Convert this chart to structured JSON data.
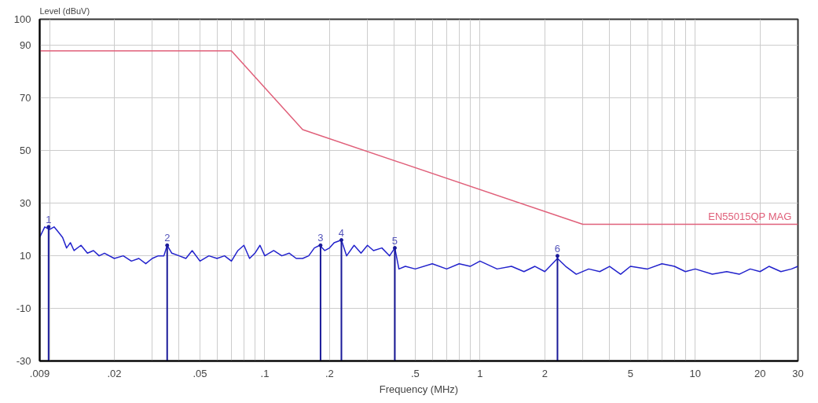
{
  "chart_data": {
    "type": "line",
    "xlabel": "Frequency (MHz)",
    "ylabel": "Level (dBuV)",
    "log": "x",
    "grid": true,
    "marker": "none",
    "line_style": "solid",
    "xlim": [
      0.009,
      30
    ],
    "ylim": [
      -30,
      100
    ],
    "xticks": [
      {
        "value": 0.009,
        "label": ".009"
      },
      {
        "value": 0.01,
        "label": null
      },
      {
        "value": 0.02,
        "label": ".02"
      },
      {
        "value": 0.03,
        "label": null
      },
      {
        "value": 0.04,
        "label": null
      },
      {
        "value": 0.05,
        "label": ".05"
      },
      {
        "value": 0.06,
        "label": null
      },
      {
        "value": 0.07,
        "label": null
      },
      {
        "value": 0.08,
        "label": null
      },
      {
        "value": 0.09,
        "label": null
      },
      {
        "value": 0.1,
        "label": ".1"
      },
      {
        "value": 0.2,
        "label": ".2"
      },
      {
        "value": 0.3,
        "label": null
      },
      {
        "value": 0.4,
        "label": null
      },
      {
        "value": 0.5,
        "label": ".5"
      },
      {
        "value": 0.6,
        "label": null
      },
      {
        "value": 0.7,
        "label": null
      },
      {
        "value": 0.8,
        "label": null
      },
      {
        "value": 0.9,
        "label": null
      },
      1,
      2,
      {
        "value": 3,
        "label": null
      },
      {
        "value": 4,
        "label": null
      },
      5,
      {
        "value": 6,
        "label": null
      },
      {
        "value": 7,
        "label": null
      },
      {
        "value": 8,
        "label": null
      },
      {
        "value": 9,
        "label": null
      },
      10,
      20,
      30
    ],
    "yticks": [
      -30,
      -10,
      10,
      30,
      50,
      70,
      90,
      100
    ],
    "series": [
      {
        "color": "#2222cc",
        "x": [
          0.009,
          0.0095,
          0.01,
          0.0105,
          0.011,
          0.0115,
          0.012,
          0.0125,
          0.013,
          0.014,
          0.015,
          0.016,
          0.017,
          0.018,
          0.02,
          0.022,
          0.024,
          0.026,
          0.028,
          0.03,
          0.032,
          0.034,
          0.0352,
          0.037,
          0.04,
          0.043,
          0.046,
          0.05,
          0.055,
          0.06,
          0.065,
          0.07,
          0.075,
          0.08,
          0.085,
          0.09,
          0.095,
          0.1,
          0.11,
          0.12,
          0.13,
          0.14,
          0.15,
          0.16,
          0.17,
          0.18,
          0.19,
          0.2,
          0.21,
          0.227,
          0.24,
          0.26,
          0.28,
          0.3,
          0.32,
          0.35,
          0.38,
          0.402,
          0.42,
          0.45,
          0.5,
          0.6,
          0.7,
          0.8,
          0.9,
          1,
          1.2,
          1.4,
          1.6,
          1.8,
          2,
          2.29,
          2.5,
          2.8,
          3.2,
          3.6,
          4,
          4.5,
          5,
          6,
          7,
          8,
          9,
          10,
          12,
          14,
          16,
          18,
          20,
          22,
          25,
          28,
          30
        ],
        "values": [
          17,
          21,
          20,
          21,
          19,
          17,
          13,
          15,
          12,
          14,
          11,
          12,
          10,
          11,
          9,
          10,
          8,
          9,
          7,
          9,
          10,
          10,
          14,
          11,
          10,
          9,
          12,
          8,
          10,
          9,
          10,
          8,
          12,
          14,
          9,
          11,
          14,
          10,
          12,
          10,
          11,
          9,
          9,
          10,
          13,
          14,
          12,
          13,
          15,
          16,
          10,
          14,
          11,
          14,
          12,
          13,
          10,
          13,
          5,
          6,
          5,
          7,
          5,
          7,
          6,
          8,
          5,
          6,
          4,
          6,
          4,
          9,
          6,
          3,
          5,
          4,
          6,
          3,
          6,
          5,
          7,
          6,
          4,
          5,
          3,
          4,
          3,
          5,
          4,
          6,
          4,
          5,
          6
        ]
      },
      {
        "name": "EN55015QP MAG",
        "color": "#e0607a",
        "x": [
          0.009,
          0.07,
          0.15,
          3,
          30
        ],
        "values": [
          88,
          88,
          58,
          22,
          22
        ]
      },
      {
        "type": "lollipop",
        "marker": "circle",
        "color": "#1a1a99",
        "x": [
          0.0099,
          0.0352,
          0.1816,
          0.227,
          0.402,
          2.29
        ],
        "values": [
          21,
          14,
          14,
          16,
          13,
          10
        ]
      }
    ],
    "annotations": [
      {
        "text": "1",
        "x": 0.0099,
        "y": 21
      },
      {
        "text": "2",
        "x": 0.0352,
        "y": 14
      },
      {
        "text": "3",
        "x": 0.1816,
        "y": 14
      },
      {
        "text": "4",
        "x": 0.227,
        "y": 16
      },
      {
        "text": "5",
        "x": 0.402,
        "y": 13
      },
      {
        "text": "6",
        "x": 2.29,
        "y": 10
      }
    ]
  }
}
